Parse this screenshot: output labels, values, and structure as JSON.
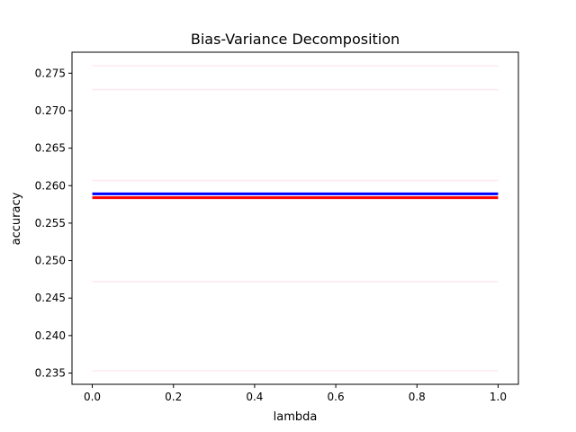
{
  "chart_data": {
    "type": "line",
    "title": "Bias-Variance Decomposition",
    "xlabel": "lambda",
    "ylabel": "accuracy",
    "xlim": [
      -0.05,
      1.05
    ],
    "ylim": [
      0.2335,
      0.2778
    ],
    "x_ticks": [
      0.0,
      0.2,
      0.4,
      0.6,
      0.8,
      1.0
    ],
    "x_tick_labels": [
      "0.0",
      "0.2",
      "0.4",
      "0.6",
      "0.8",
      "1.0"
    ],
    "y_ticks": [
      0.235,
      0.24,
      0.245,
      0.25,
      0.255,
      0.26,
      0.265,
      0.27,
      0.275
    ],
    "y_tick_labels": [
      "0.235",
      "0.240",
      "0.245",
      "0.250",
      "0.255",
      "0.260",
      "0.265",
      "0.270",
      "0.275"
    ],
    "grid": false,
    "series": [
      {
        "color": "#ffe8ee",
        "width": 1.5,
        "x": [
          0.0,
          1.0
        ],
        "y": [
          0.276,
          0.276
        ]
      },
      {
        "color": "#ffe8ee",
        "width": 1.5,
        "x": [
          0.0,
          1.0
        ],
        "y": [
          0.2728,
          0.2728
        ]
      },
      {
        "color": "#ffe8ee",
        "width": 1.5,
        "x": [
          0.0,
          1.0
        ],
        "y": [
          0.2607,
          0.2607
        ]
      },
      {
        "color": "#ffe8ee",
        "width": 1.5,
        "x": [
          0.0,
          1.0
        ],
        "y": [
          0.2472,
          0.2472
        ]
      },
      {
        "color": "#ffe8ee",
        "width": 1.5,
        "x": [
          0.0,
          1.0
        ],
        "y": [
          0.2353,
          0.2353
        ]
      },
      {
        "color": "#ff0000",
        "width": 3,
        "x": [
          0.0,
          1.0
        ],
        "y": [
          0.2584,
          0.2584
        ]
      },
      {
        "color": "#0000ff",
        "width": 3,
        "x": [
          0.0,
          1.0
        ],
        "y": [
          0.2589,
          0.2589
        ]
      }
    ]
  }
}
